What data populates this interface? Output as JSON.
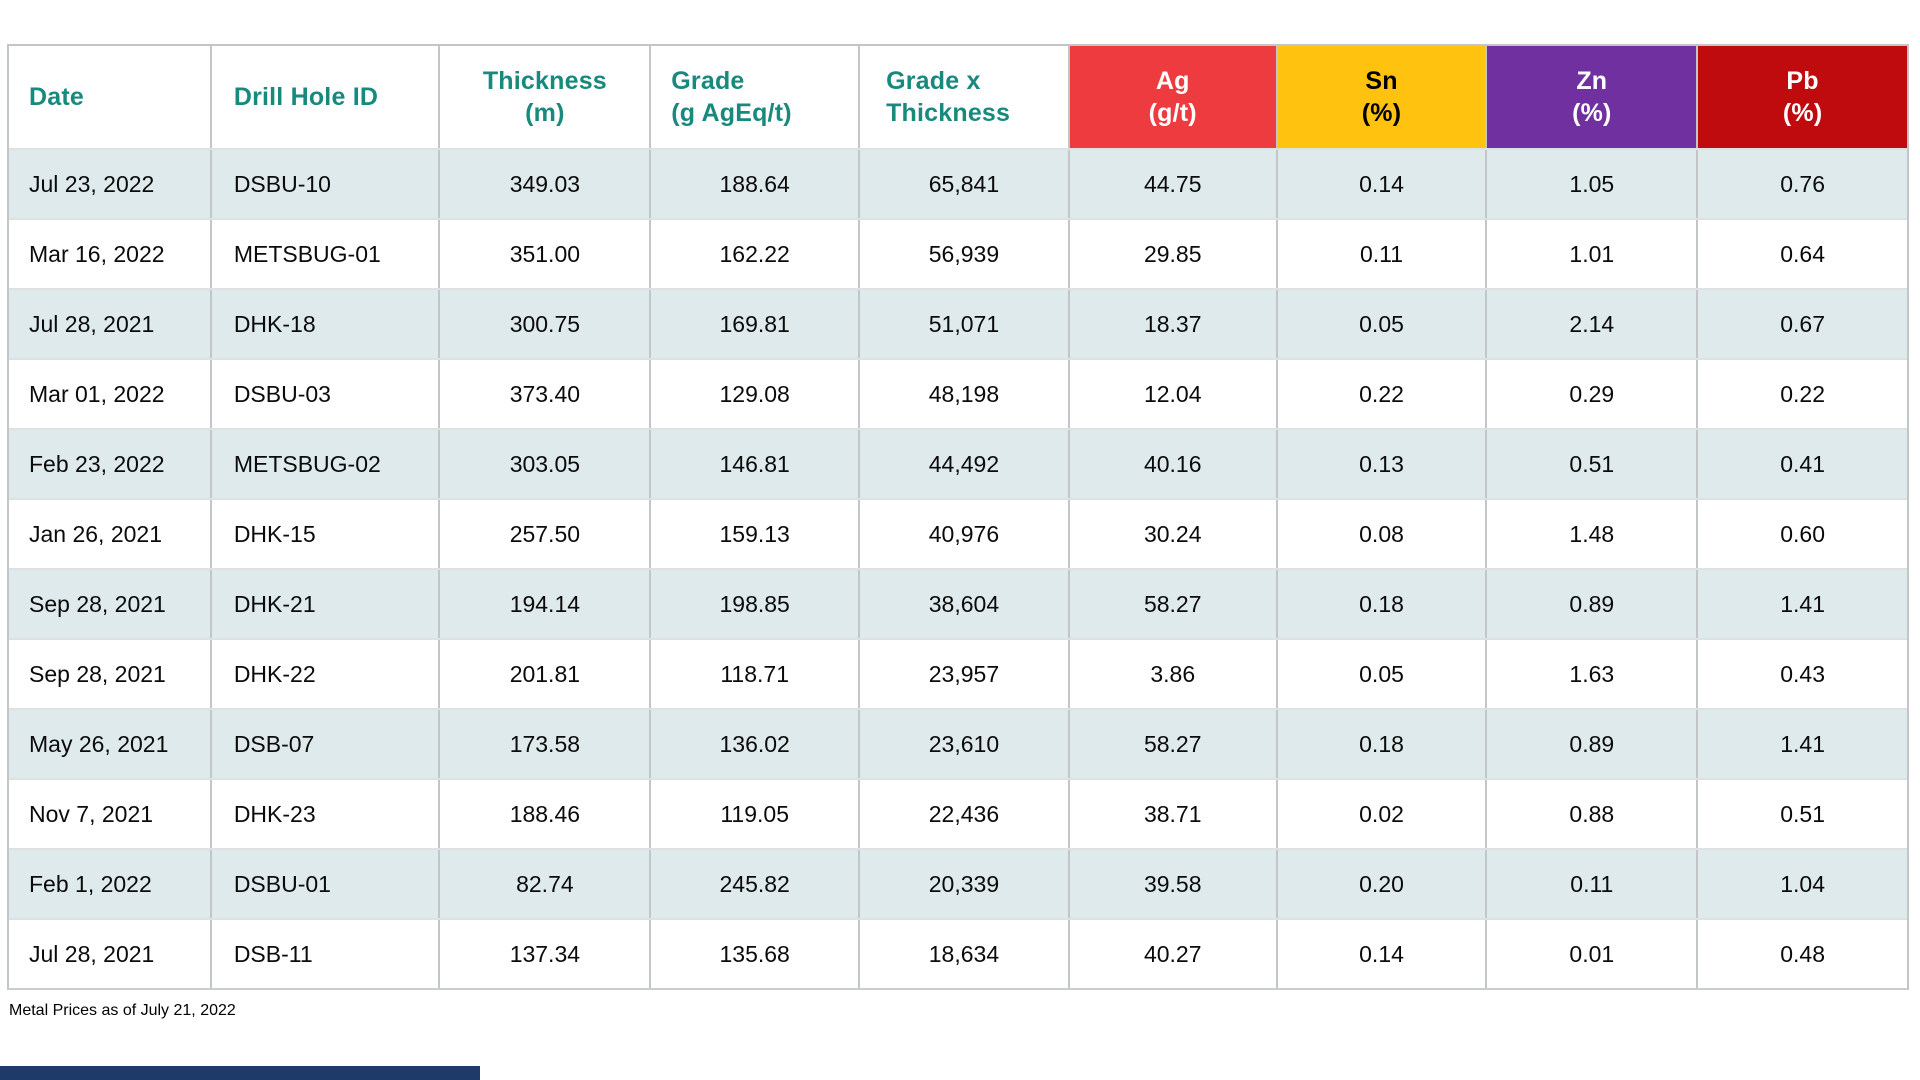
{
  "colors": {
    "teal_header_text": "#17897D",
    "ag_bg": "#ED3B40",
    "ag_fg": "#FFFFFF",
    "sn_bg": "#FFC20E",
    "sn_fg": "#000000",
    "zn_bg": "#7030A0",
    "zn_fg": "#FFFFFF",
    "pb_bg": "#C00B0E",
    "pb_fg": "#FFFFFF",
    "row_alt_bg": "#DFEAEC",
    "grid_line": "#C2C6C6",
    "accent_bar": "#1E3A68"
  },
  "chart_data": {
    "type": "table",
    "columns": [
      {
        "key": "date",
        "line1": "Date",
        "line2": "",
        "header_align": "left",
        "header_pad": 20,
        "data_align": "left",
        "data_pad": 20,
        "bg": "",
        "fg": "#17897D"
      },
      {
        "key": "drill-hole-id",
        "line1": "Drill Hole ID",
        "line2": "",
        "header_align": "left",
        "header_pad": 22,
        "data_align": "left",
        "data_pad": 22,
        "bg": "",
        "fg": "#17897D"
      },
      {
        "key": "thickness",
        "line1": "Thickness",
        "line2": "(m)",
        "header_align": "center",
        "header_pad": 0,
        "data_align": "center",
        "data_pad": 0,
        "bg": "",
        "fg": "#17897D"
      },
      {
        "key": "grade",
        "line1": "Grade",
        "line2": "(g AgEq/t)",
        "header_align": "left",
        "header_pad": 20,
        "data_align": "center",
        "data_pad": 0,
        "bg": "",
        "fg": "#17897D"
      },
      {
        "key": "grade-x-thickness",
        "line1": "Grade x",
        "line2": "Thickness",
        "header_align": "left",
        "header_pad": 26,
        "data_align": "center",
        "data_pad": 0,
        "bg": "",
        "fg": "#17897D"
      },
      {
        "key": "ag",
        "line1": "Ag",
        "line2": "(g/t)",
        "header_align": "center",
        "header_pad": 0,
        "data_align": "center",
        "data_pad": 0,
        "bg": "#ED3B40",
        "fg": "#FFFFFF"
      },
      {
        "key": "sn",
        "line1": "Sn",
        "line2": "(%)",
        "header_align": "center",
        "header_pad": 0,
        "data_align": "center",
        "data_pad": 0,
        "bg": "#FFC20E",
        "fg": "#000000"
      },
      {
        "key": "zn",
        "line1": "Zn",
        "line2": "(%)",
        "header_align": "center",
        "header_pad": 0,
        "data_align": "center",
        "data_pad": 0,
        "bg": "#7030A0",
        "fg": "#FFFFFF"
      },
      {
        "key": "pb",
        "line1": "Pb",
        "line2": "(%)",
        "header_align": "center",
        "header_pad": 0,
        "data_align": "center",
        "data_pad": 0,
        "bg": "#C00B0E",
        "fg": "#FFFFFF"
      }
    ],
    "rows": [
      [
        "Jul 23, 2022",
        "DSBU-10",
        "349.03",
        "188.64",
        "65,841",
        "44.75",
        "0.14",
        "1.05",
        "0.76"
      ],
      [
        "Mar 16, 2022",
        "METSBUG-01",
        "351.00",
        "162.22",
        "56,939",
        "29.85",
        "0.11",
        "1.01",
        "0.64"
      ],
      [
        "Jul 28, 2021",
        "DHK-18",
        "300.75",
        "169.81",
        "51,071",
        "18.37",
        "0.05",
        "2.14",
        "0.67"
      ],
      [
        "Mar 01, 2022",
        "DSBU-03",
        "373.40",
        "129.08",
        "48,198",
        "12.04",
        "0.22",
        "0.29",
        "0.22"
      ],
      [
        "Feb 23, 2022",
        "METSBUG-02",
        "303.05",
        "146.81",
        "44,492",
        "40.16",
        "0.13",
        "0.51",
        "0.41"
      ],
      [
        "Jan 26, 2021",
        "DHK-15",
        "257.50",
        "159.13",
        "40,976",
        "30.24",
        "0.08",
        "1.48",
        "0.60"
      ],
      [
        "Sep 28, 2021",
        "DHK-21",
        "194.14",
        "198.85",
        "38,604",
        "58.27",
        "0.18",
        "0.89",
        "1.41"
      ],
      [
        "Sep 28, 2021",
        "DHK-22",
        "201.81",
        "118.71",
        "23,957",
        "3.86",
        "0.05",
        "1.63",
        "0.43"
      ],
      [
        "May 26, 2021",
        "DSB-07",
        "173.58",
        "136.02",
        "23,610",
        "58.27",
        "0.18",
        "0.89",
        "1.41"
      ],
      [
        "Nov 7, 2021",
        "DHK-23",
        "188.46",
        "119.05",
        "22,436",
        "38.71",
        "0.02",
        "0.88",
        "0.51"
      ],
      [
        "Feb 1, 2022",
        "DSBU-01",
        "82.74",
        "245.82",
        "20,339",
        "39.58",
        "0.20",
        "0.11",
        "1.04"
      ],
      [
        "Jul 28, 2021",
        "DSB-11",
        "137.34",
        "135.68",
        "18,634",
        "40.27",
        "0.14",
        "0.01",
        "0.48"
      ]
    ]
  },
  "footnote": "Metal Prices as of July 21, 2022"
}
